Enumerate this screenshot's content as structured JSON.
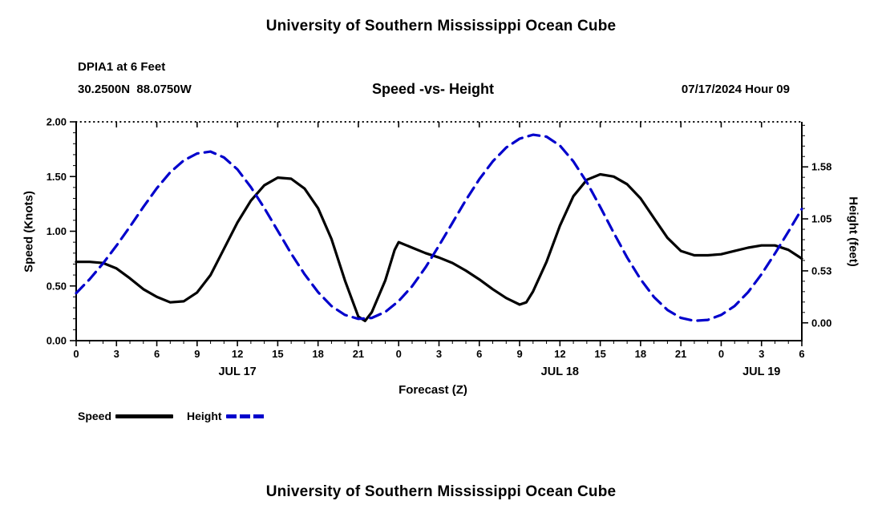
{
  "page": {
    "top_title": "University of Southern Mississippi Ocean Cube",
    "bottom_title": "University of Southern Mississippi Ocean Cube"
  },
  "header": {
    "station": "DPIA1 at 6 Feet",
    "coordinates": "30.2500N  88.0750W",
    "chart_title": "Speed -vs- Height",
    "timestamp": "07/17/2024 Hour 09"
  },
  "legend": {
    "speed_label": "Speed",
    "height_label": "Height"
  },
  "colors": {
    "speed": "#000000",
    "height": "#0000cc",
    "background": "#ffffff"
  },
  "chart_data": {
    "type": "line",
    "title": "Speed -vs- Height",
    "xlabel": "Forecast (Z)",
    "ylabel_left": "Speed (Knots)",
    "ylabel_right": "Height (feet)",
    "xlim": [
      0,
      54
    ],
    "ylim_left": [
      0,
      2.0
    ],
    "ylim_right": [
      -0.18,
      2.03
    ],
    "grid": false,
    "legend_position": "bottom-left",
    "x_tick_values": [
      0,
      3,
      6,
      9,
      12,
      15,
      18,
      21,
      24,
      27,
      30,
      33,
      36,
      39,
      42,
      45,
      48,
      51,
      54
    ],
    "x_tick_labels": [
      "0",
      "3",
      "6",
      "9",
      "12",
      "15",
      "18",
      "21",
      "0",
      "3",
      "6",
      "9",
      "12",
      "15",
      "18",
      "21",
      "0",
      "3",
      "6"
    ],
    "day_labels": [
      {
        "label": "JUL 17",
        "t": 12
      },
      {
        "label": "JUL 18",
        "t": 36
      },
      {
        "label": "JUL 19",
        "t": 51
      }
    ],
    "y_ticks_left": [
      {
        "v": 0.0,
        "label": "0.00"
      },
      {
        "v": 0.5,
        "label": "0.50"
      },
      {
        "v": 1.0,
        "label": "1.00"
      },
      {
        "v": 1.5,
        "label": "1.50"
      },
      {
        "v": 2.0,
        "label": "2.00"
      }
    ],
    "y_ticks_right": [
      {
        "v": 0.0,
        "label": "0.00"
      },
      {
        "v": 0.525,
        "label": "0.53"
      },
      {
        "v": 1.05,
        "label": "1.05"
      },
      {
        "v": 1.575,
        "label": "1.58"
      }
    ],
    "series": [
      {
        "name": "Speed",
        "axis": "left",
        "units": "knots",
        "color": "#000000",
        "style": "solid",
        "points": [
          [
            0,
            0.72
          ],
          [
            1,
            0.72
          ],
          [
            2,
            0.71
          ],
          [
            3,
            0.66
          ],
          [
            4,
            0.57
          ],
          [
            5,
            0.47
          ],
          [
            6,
            0.4
          ],
          [
            7,
            0.35
          ],
          [
            8,
            0.36
          ],
          [
            9,
            0.44
          ],
          [
            10,
            0.6
          ],
          [
            11,
            0.84
          ],
          [
            12,
            1.08
          ],
          [
            13,
            1.28
          ],
          [
            14,
            1.42
          ],
          [
            15,
            1.49
          ],
          [
            16,
            1.48
          ],
          [
            17,
            1.39
          ],
          [
            18,
            1.21
          ],
          [
            19,
            0.93
          ],
          [
            20,
            0.55
          ],
          [
            21,
            0.22
          ],
          [
            21.5,
            0.18
          ],
          [
            22,
            0.26
          ],
          [
            23,
            0.55
          ],
          [
            23.7,
            0.83
          ],
          [
            24,
            0.9
          ],
          [
            25,
            0.85
          ],
          [
            26,
            0.8
          ],
          [
            27,
            0.76
          ],
          [
            28,
            0.71
          ],
          [
            29,
            0.64
          ],
          [
            30,
            0.56
          ],
          [
            31,
            0.47
          ],
          [
            32,
            0.39
          ],
          [
            33,
            0.33
          ],
          [
            33.5,
            0.35
          ],
          [
            34,
            0.45
          ],
          [
            35,
            0.72
          ],
          [
            36,
            1.05
          ],
          [
            37,
            1.32
          ],
          [
            38,
            1.47
          ],
          [
            39,
            1.52
          ],
          [
            40,
            1.5
          ],
          [
            41,
            1.43
          ],
          [
            42,
            1.3
          ],
          [
            43,
            1.12
          ],
          [
            44,
            0.94
          ],
          [
            45,
            0.82
          ],
          [
            46,
            0.78
          ],
          [
            47,
            0.78
          ],
          [
            48,
            0.79
          ],
          [
            49,
            0.82
          ],
          [
            50,
            0.85
          ],
          [
            51,
            0.87
          ],
          [
            52,
            0.87
          ],
          [
            53,
            0.83
          ],
          [
            54,
            0.75
          ]
        ]
      },
      {
        "name": "Height",
        "axis": "right",
        "units": "feet",
        "color": "#0000cc",
        "style": "dashed",
        "points": [
          [
            0,
            0.3
          ],
          [
            1,
            0.44
          ],
          [
            2,
            0.6
          ],
          [
            3,
            0.78
          ],
          [
            4,
            0.97
          ],
          [
            5,
            1.17
          ],
          [
            6,
            1.36
          ],
          [
            7,
            1.52
          ],
          [
            8,
            1.64
          ],
          [
            9,
            1.71
          ],
          [
            10,
            1.73
          ],
          [
            11,
            1.67
          ],
          [
            12,
            1.55
          ],
          [
            13,
            1.37
          ],
          [
            14,
            1.16
          ],
          [
            15,
            0.93
          ],
          [
            16,
            0.7
          ],
          [
            17,
            0.49
          ],
          [
            18,
            0.31
          ],
          [
            19,
            0.17
          ],
          [
            20,
            0.08
          ],
          [
            21,
            0.04
          ],
          [
            22,
            0.05
          ],
          [
            23,
            0.11
          ],
          [
            24,
            0.22
          ],
          [
            25,
            0.37
          ],
          [
            26,
            0.56
          ],
          [
            27,
            0.78
          ],
          [
            28,
            1.01
          ],
          [
            29,
            1.24
          ],
          [
            30,
            1.45
          ],
          [
            31,
            1.63
          ],
          [
            32,
            1.77
          ],
          [
            33,
            1.86
          ],
          [
            34,
            1.9
          ],
          [
            35,
            1.88
          ],
          [
            36,
            1.79
          ],
          [
            37,
            1.63
          ],
          [
            38,
            1.42
          ],
          [
            39,
            1.17
          ],
          [
            40,
            0.91
          ],
          [
            41,
            0.66
          ],
          [
            42,
            0.44
          ],
          [
            43,
            0.26
          ],
          [
            44,
            0.13
          ],
          [
            45,
            0.05
          ],
          [
            46,
            0.02
          ],
          [
            47,
            0.03
          ],
          [
            48,
            0.08
          ],
          [
            49,
            0.17
          ],
          [
            50,
            0.31
          ],
          [
            51,
            0.49
          ],
          [
            52,
            0.7
          ],
          [
            53,
            0.92
          ],
          [
            54,
            1.15
          ]
        ]
      }
    ]
  }
}
